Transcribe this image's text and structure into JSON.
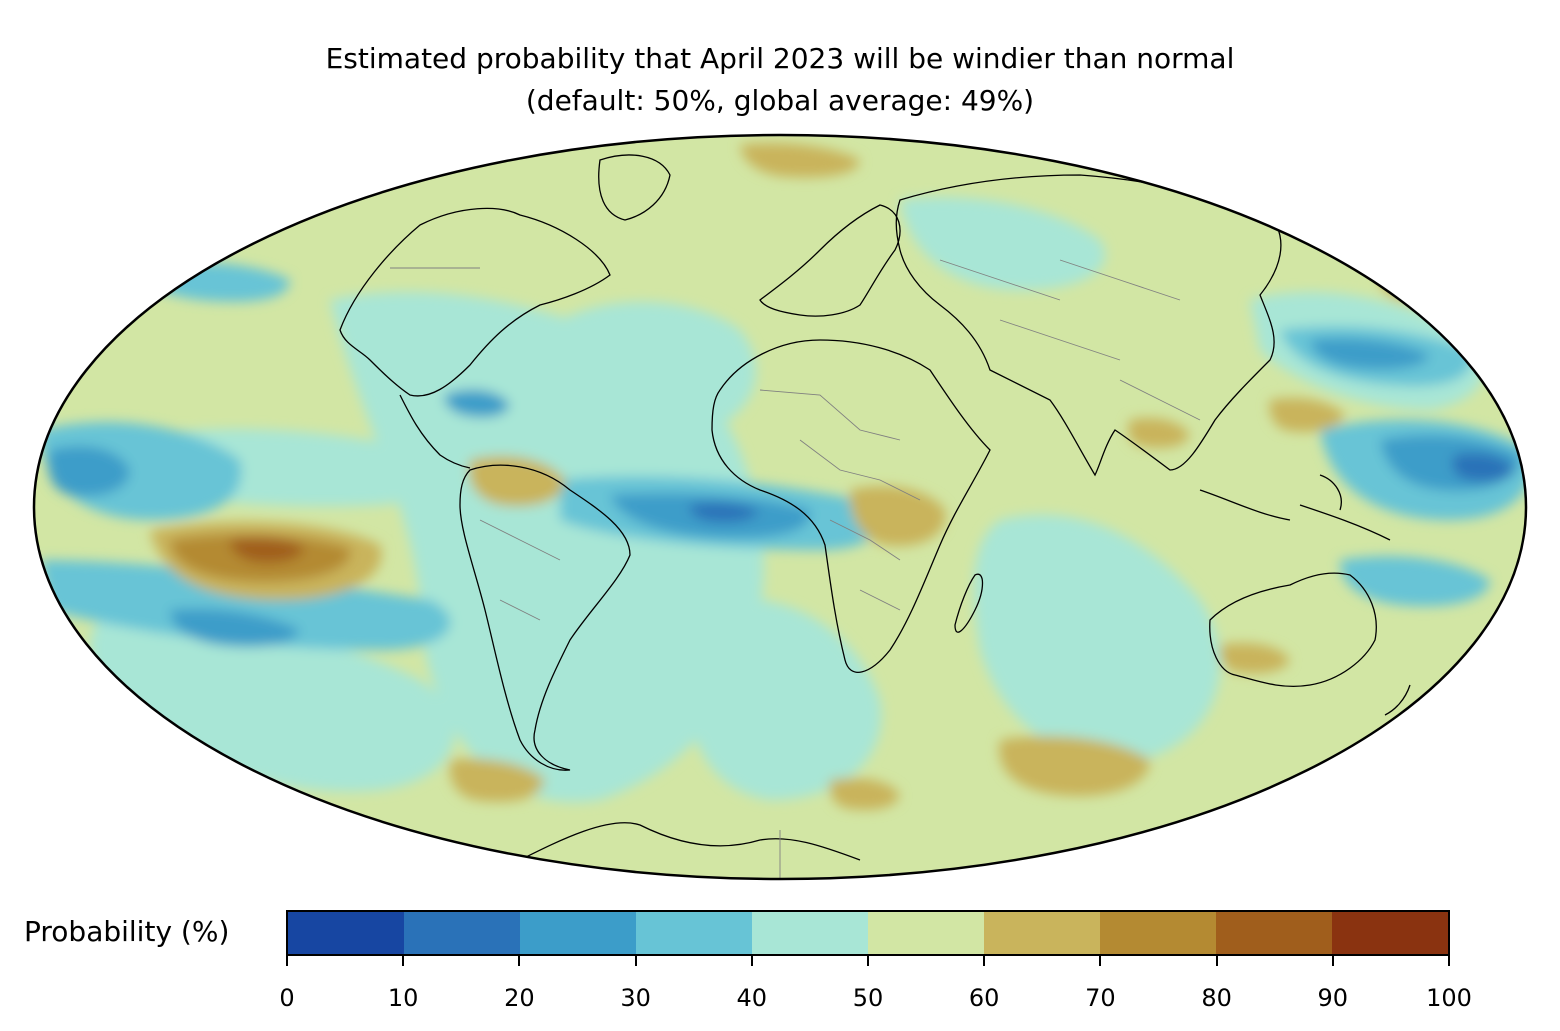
{
  "title": {
    "line1": "Estimated probability that April 2023 will be windier than normal",
    "line2": "(default: 50%, global average: 49%)"
  },
  "map": {
    "projection": "Mollweide",
    "coastlines": true,
    "country_borders": true,
    "variable": "Probability that April 2023 will be windier than normal",
    "default_percent": 50,
    "global_average_percent": 49
  },
  "colorbar": {
    "label": "Probability (%)",
    "ticks": [
      "0",
      "10",
      "20",
      "30",
      "40",
      "50",
      "60",
      "70",
      "80",
      "90",
      "100"
    ],
    "colors": [
      "#1746a2",
      "#2a72b8",
      "#3c9dc9",
      "#67c4d6",
      "#a8e6d6",
      "#d2e6a4",
      "#c9b45c",
      "#b48a32",
      "#a05e1c",
      "#8a3310"
    ]
  }
}
